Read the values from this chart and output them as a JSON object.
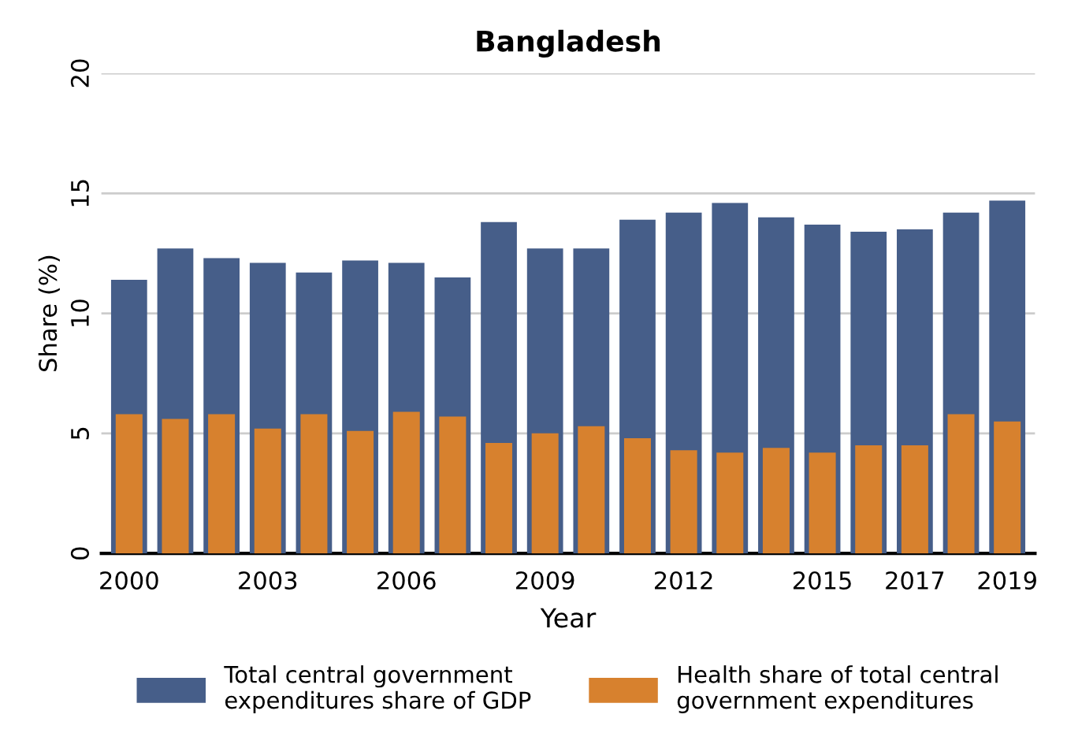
{
  "chart_data": {
    "type": "bar",
    "title": "Bangladesh",
    "xlabel": "Year",
    "ylabel": "Share (%)",
    "categories": [
      "2000",
      null,
      null,
      "2003",
      null,
      null,
      "2006",
      null,
      null,
      "2009",
      null,
      null,
      "2012",
      null,
      null,
      "2015",
      null,
      "2017",
      null,
      "2019"
    ],
    "series": [
      {
        "name": "Total central government expenditures share of GDP",
        "color": "#465e89",
        "values": [
          11.4,
          12.7,
          12.3,
          12.1,
          11.7,
          12.2,
          12.1,
          11.5,
          13.8,
          12.7,
          12.7,
          13.9,
          14.2,
          14.6,
          14.0,
          13.7,
          13.4,
          13.5,
          14.2,
          14.7
        ]
      },
      {
        "name": "Health share of total central government expenditures",
        "color": "#d7812e",
        "values": [
          5.8,
          5.6,
          5.8,
          5.2,
          5.8,
          5.1,
          5.9,
          5.7,
          4.6,
          5.0,
          5.3,
          4.8,
          4.3,
          4.2,
          4.4,
          4.2,
          4.5,
          4.5,
          5.8,
          5.5
        ]
      }
    ],
    "ylim": [
      0,
      20
    ],
    "yticks": [
      0,
      5,
      10,
      15,
      20
    ],
    "grid": "y",
    "legend": "bottom"
  }
}
